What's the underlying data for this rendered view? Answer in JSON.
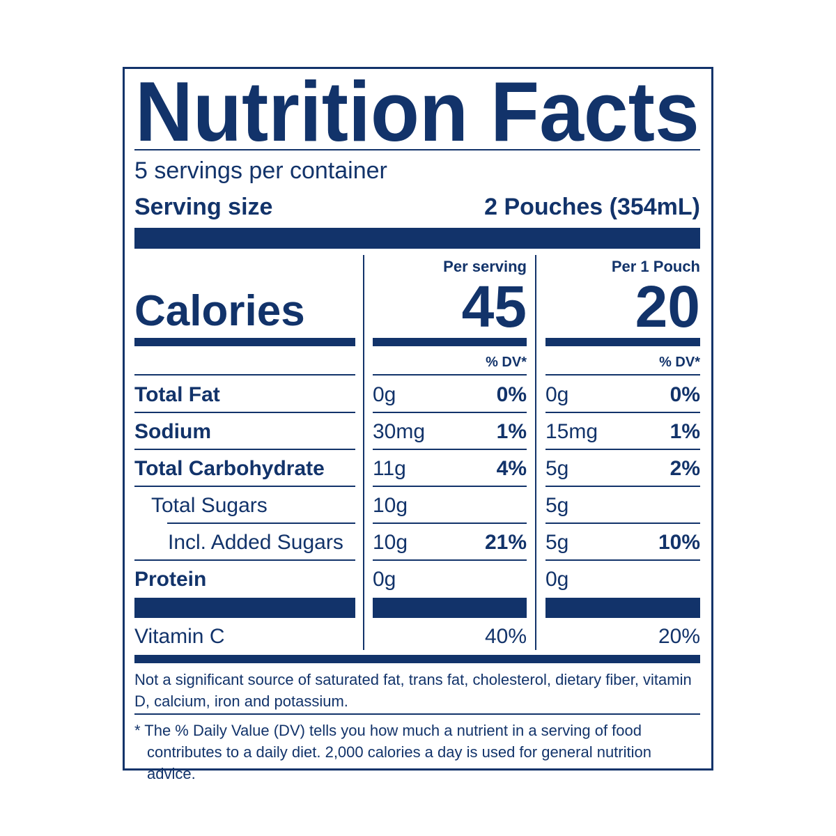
{
  "title": "Nutrition Facts",
  "servings": "5 servings per container",
  "serving_size": {
    "label": "Serving size",
    "value": "2 Pouches (354mL)"
  },
  "calories": {
    "label": "Calories",
    "columns": [
      {
        "heading": "Per serving",
        "value": "45"
      },
      {
        "heading": "Per 1 Pouch",
        "value": "20"
      }
    ]
  },
  "dv_header": [
    "% DV*",
    "% DV*"
  ],
  "rows": [
    {
      "name": "Total Fat",
      "bold": true,
      "indent": 0,
      "cells": [
        [
          "0g",
          "0%"
        ],
        [
          "0g",
          "0%"
        ]
      ]
    },
    {
      "name": "Sodium",
      "bold": true,
      "indent": 0,
      "cells": [
        [
          "30mg",
          "1%"
        ],
        [
          "15mg",
          "1%"
        ]
      ]
    },
    {
      "name": "Total Carbohydrate",
      "bold": true,
      "indent": 0,
      "cells": [
        [
          "11g",
          "4%"
        ],
        [
          "5g",
          "2%"
        ]
      ]
    },
    {
      "name": "Total Sugars",
      "bold": false,
      "indent": 1,
      "cells": [
        [
          "10g"
        ],
        [
          "5g"
        ]
      ]
    },
    {
      "name": "Incl. Added Sugars",
      "bold": false,
      "indent": 2,
      "cells": [
        [
          "10g",
          "21%"
        ],
        [
          "5g",
          "10%"
        ]
      ]
    },
    {
      "name": "Protein",
      "bold": true,
      "indent": 0,
      "cells": [
        [
          "0g"
        ],
        [
          "0g"
        ]
      ]
    }
  ],
  "vitamins": [
    {
      "name": "Vitamin C",
      "cells": [
        "40%",
        "20%"
      ]
    }
  ],
  "footnotes": [
    "Not a significant source of saturated fat, trans fat, cholesterol, dietary fiber, vitamin D, calcium, iron and potassium.",
    "* The % Daily Value (DV) tells you how much a nutrient in a serving of food contributes to a daily diet. 2,000 calories a day is used for general nutrition advice."
  ]
}
